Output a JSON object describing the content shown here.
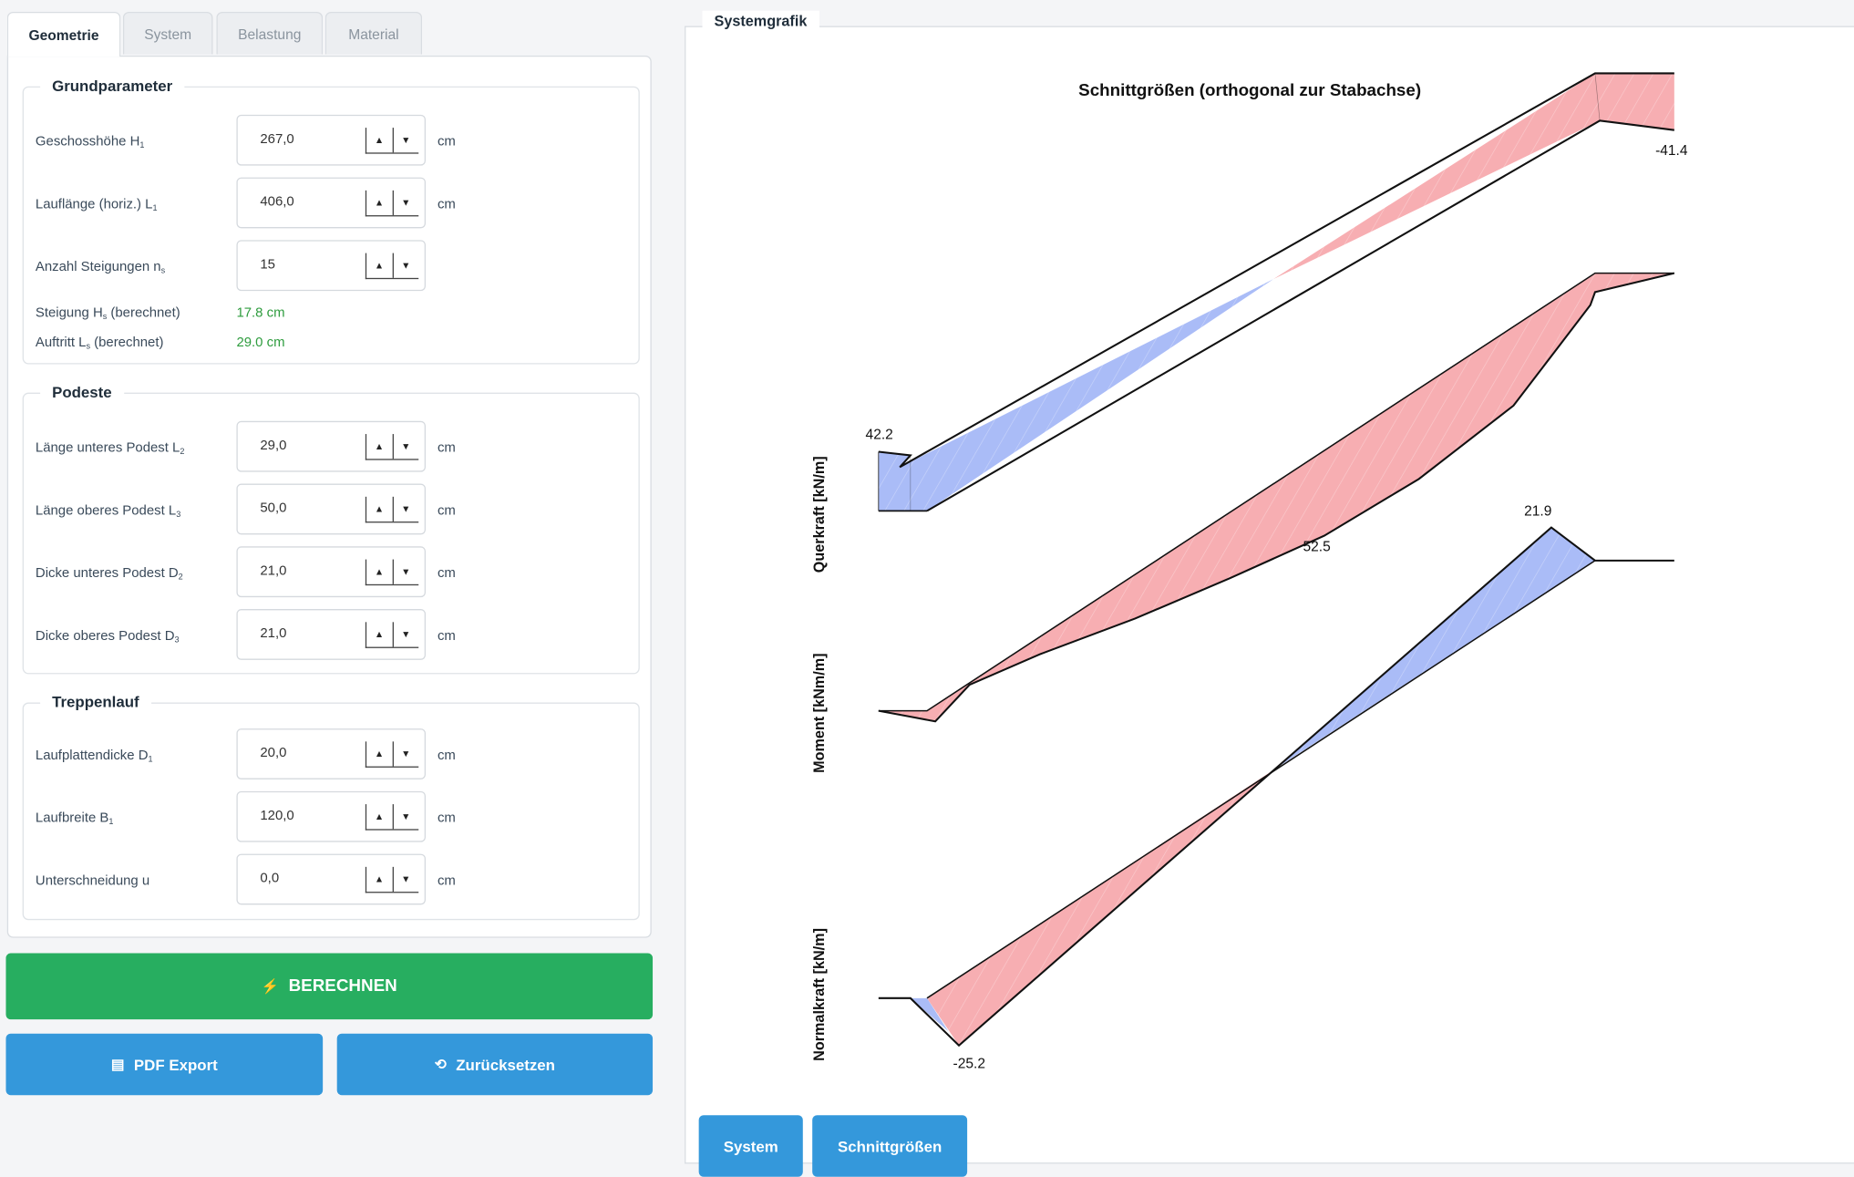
{
  "tabs": [
    {
      "label": "Geometrie",
      "active": true
    },
    {
      "label": "System",
      "active": false
    },
    {
      "label": "Belastung",
      "active": false
    },
    {
      "label": "Material",
      "active": false
    }
  ],
  "groups": {
    "grundparameter": {
      "title": "Grundparameter",
      "rows": [
        {
          "label": "Geschosshöhe H",
          "sub": "1",
          "value": "267,0",
          "unit": "cm"
        },
        {
          "label": "Lauflänge (horiz.) L",
          "sub": "1",
          "value": "406,0",
          "unit": "cm"
        },
        {
          "label": "Anzahl Steigungen n",
          "sub": "s",
          "value": "15",
          "unit": ""
        }
      ],
      "computed": [
        {
          "label": "Steigung H",
          "sub": "s",
          "label_suffix": " (berechnet)",
          "value": "17.8 cm"
        },
        {
          "label": "Auftritt L",
          "sub": "s",
          "label_suffix": " (berechnet)",
          "value": "29.0 cm"
        }
      ]
    },
    "podeste": {
      "title": "Podeste",
      "rows": [
        {
          "label": "Länge unteres Podest L",
          "sub": "2",
          "value": "29,0",
          "unit": "cm"
        },
        {
          "label": "Länge oberes Podest L",
          "sub": "3",
          "value": "50,0",
          "unit": "cm"
        },
        {
          "label": "Dicke unteres Podest D",
          "sub": "2",
          "value": "21,0",
          "unit": "cm"
        },
        {
          "label": "Dicke oberes Podest D",
          "sub": "3",
          "value": "21,0",
          "unit": "cm"
        }
      ]
    },
    "treppenlauf": {
      "title": "Treppenlauf",
      "rows": [
        {
          "label": "Laufplattendicke D",
          "sub": "1",
          "value": "20,0",
          "unit": "cm"
        },
        {
          "label": "Laufbreite B",
          "sub": "1",
          "value": "120,0",
          "unit": "cm"
        },
        {
          "label": "Unterschneidung u",
          "sub": "",
          "value": "0,0",
          "unit": "cm"
        }
      ]
    }
  },
  "actions": {
    "calculate": {
      "label": "BERECHNEN",
      "icon": "lightning-icon"
    },
    "pdf_export": {
      "label": "PDF Export",
      "icon": "document-icon"
    },
    "reset": {
      "label": "Zurücksetzen",
      "icon": "reset-icon"
    }
  },
  "graphic": {
    "legend": "Systemgrafik",
    "title": "Schnittgrößen (orthogonal zur Stabachse)",
    "view_buttons": {
      "system": "System",
      "internal_forces": "Schnittgrößen"
    }
  },
  "chart_data": [
    {
      "type": "area",
      "ylabel": "Querkraft [kN/m]",
      "labels": [
        "42.2",
        "-41.4"
      ],
      "extrema": {
        "max": 42.2,
        "min": -41.4
      },
      "colors": {
        "positive": "#aabcf7",
        "negative": "#f7aeb2"
      }
    },
    {
      "type": "area",
      "ylabel": "Moment [kNm/m]",
      "labels": [
        "52.5"
      ],
      "extrema": {
        "max": 52.5
      },
      "colors": {
        "positive": "#f7aeb2"
      }
    },
    {
      "type": "area",
      "ylabel": "Normalkraft [kN/m]",
      "labels": [
        "21.9",
        "-25.2"
      ],
      "extrema": {
        "max": 21.9,
        "min": -25.2
      },
      "colors": {
        "positive": "#aabcf7",
        "negative": "#f7aeb2"
      }
    }
  ]
}
